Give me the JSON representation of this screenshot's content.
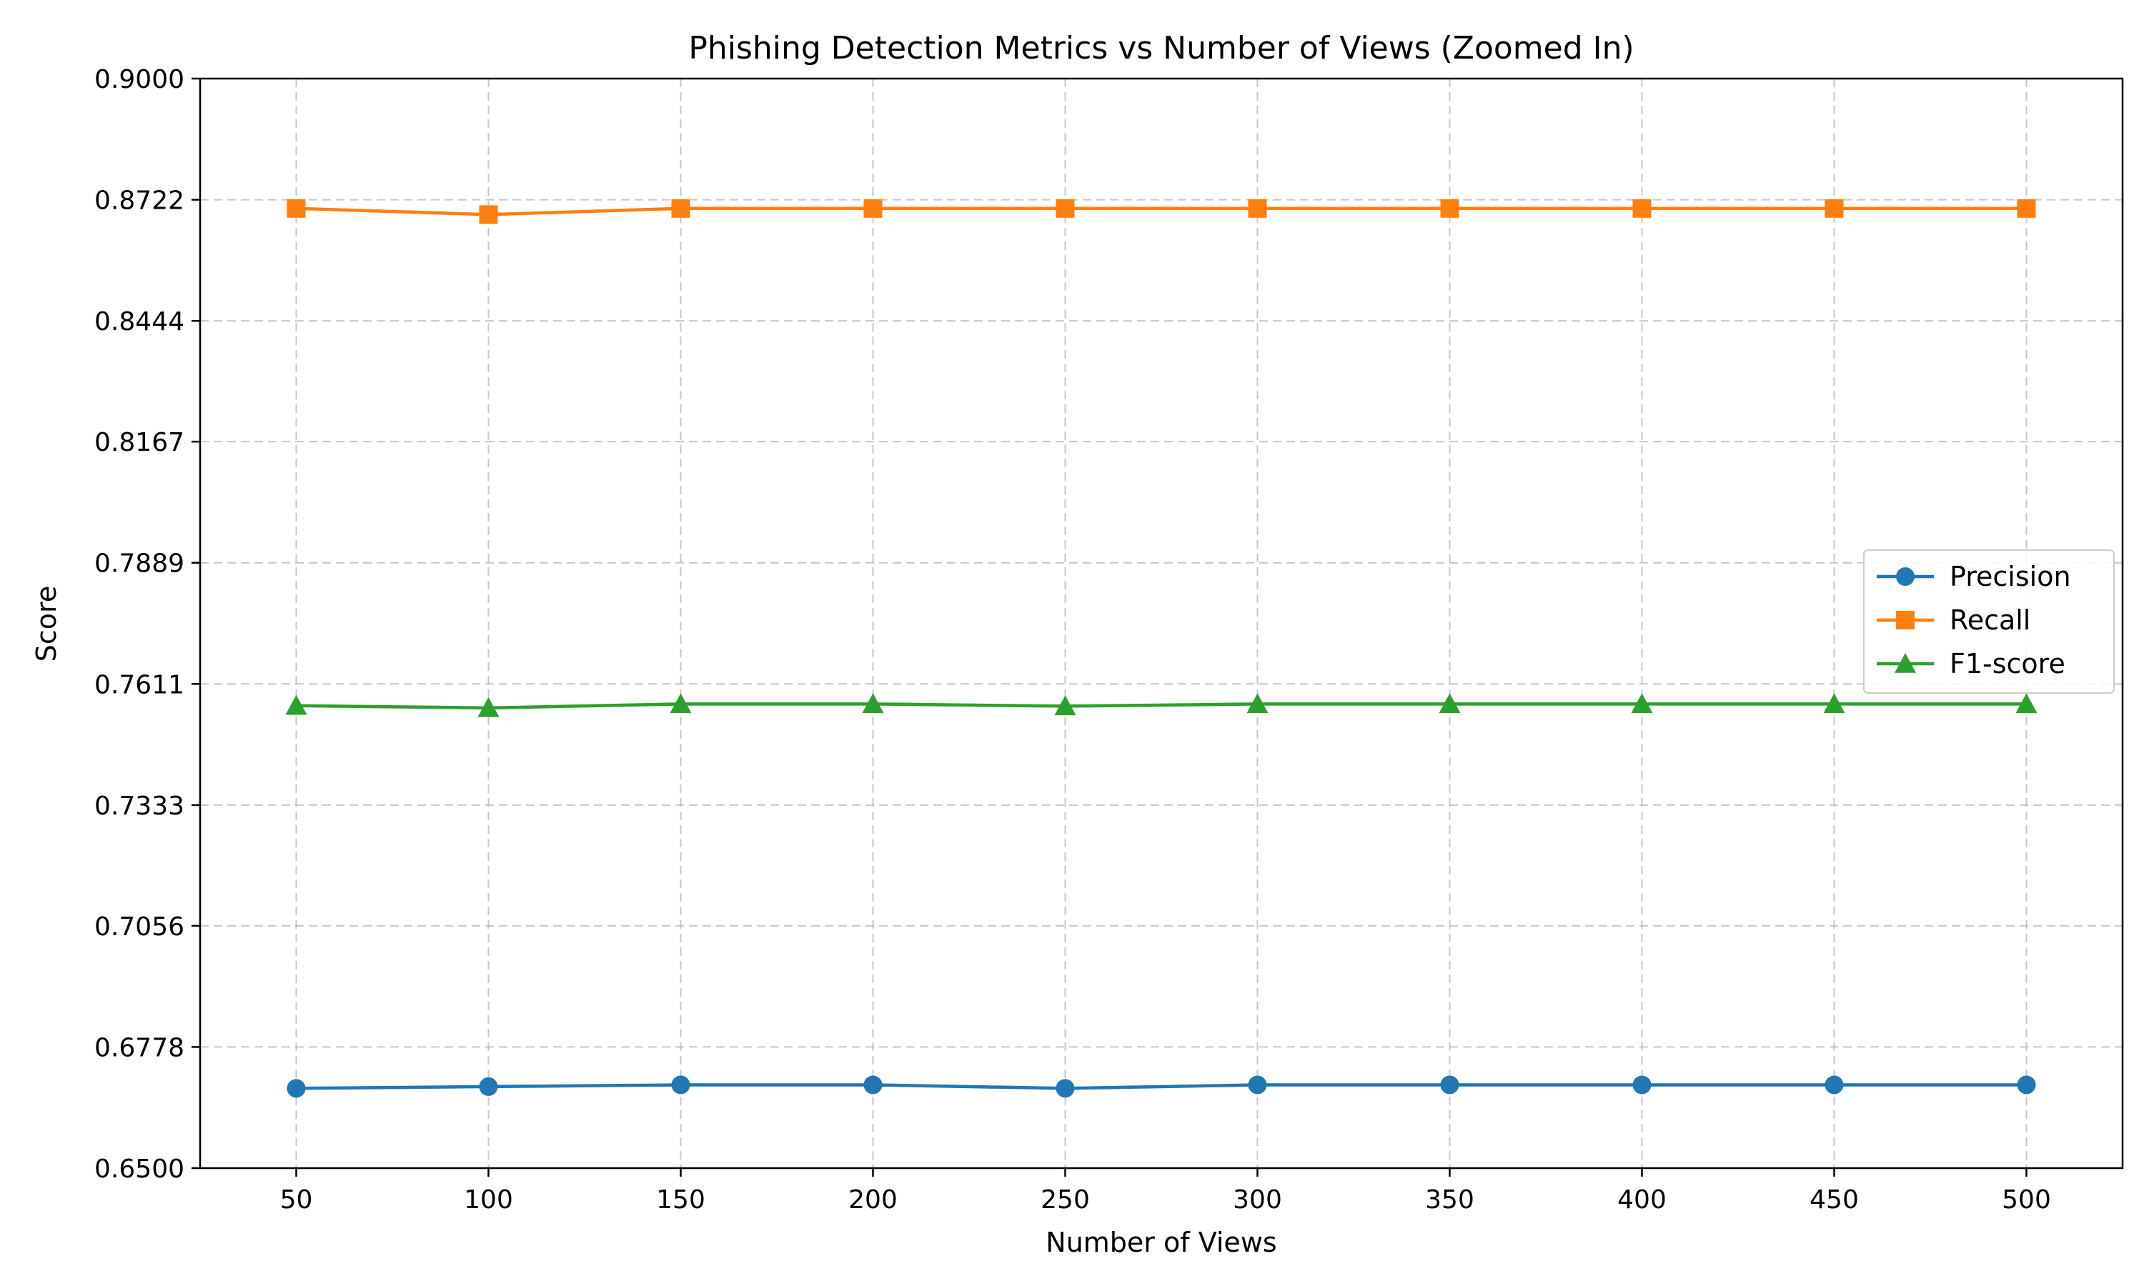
{
  "chart_data": {
    "type": "line",
    "title": "Phishing Detection Metrics vs Number of Views (Zoomed In)",
    "xlabel": "Number of Views",
    "ylabel": "Score",
    "x": [
      50,
      100,
      150,
      200,
      250,
      300,
      350,
      400,
      450,
      500
    ],
    "x_ticks": [
      "50",
      "100",
      "150",
      "200",
      "250",
      "300",
      "350",
      "400",
      "450",
      "500"
    ],
    "xlim": [
      25,
      525
    ],
    "ylim": [
      0.65,
      0.9
    ],
    "y_ticks": [
      "0.6500",
      "0.6778",
      "0.7056",
      "0.7333",
      "0.7611",
      "0.7889",
      "0.8167",
      "0.8444",
      "0.8722",
      "0.9000"
    ],
    "grid": true,
    "legend_position": "center-right",
    "series": [
      {
        "name": "Precision",
        "color": "#1f77b4",
        "marker": "circle",
        "values": [
          0.6683,
          0.6687,
          0.6691,
          0.6691,
          0.6683,
          0.6691,
          0.6691,
          0.6691,
          0.6691,
          0.6691
        ]
      },
      {
        "name": "Recall",
        "color": "#ff7f0e",
        "marker": "square",
        "values": [
          0.8702,
          0.8688,
          0.8702,
          0.8702,
          0.8702,
          0.8702,
          0.8702,
          0.8702,
          0.8702,
          0.8702
        ]
      },
      {
        "name": "F1-score",
        "color": "#2ca02c",
        "marker": "triangle",
        "values": [
          0.7561,
          0.7556,
          0.7565,
          0.7565,
          0.756,
          0.7565,
          0.7565,
          0.7565,
          0.7565,
          0.7565
        ]
      }
    ]
  }
}
